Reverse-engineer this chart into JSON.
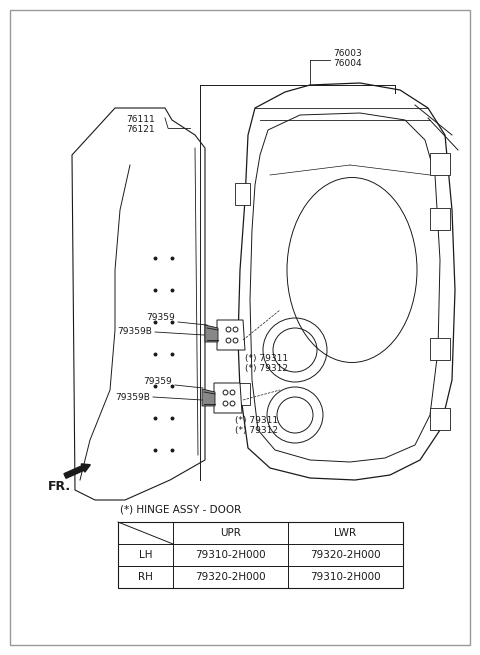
{
  "bg_color": "#ffffff",
  "border_color": "#aaaaaa",
  "line_color": "#1a1a1a",
  "title": "(*) HINGE ASSY - DOOR",
  "table_headers": [
    "",
    "UPR",
    "LWR"
  ],
  "table_rows": [
    [
      "LH",
      "79310-2H000",
      "79320-2H000"
    ],
    [
      "RH",
      "79320-2H000",
      "79310-2H000"
    ]
  ],
  "font_size_labels": 6.5,
  "font_size_table": 7.5,
  "font_size_title": 7.5
}
